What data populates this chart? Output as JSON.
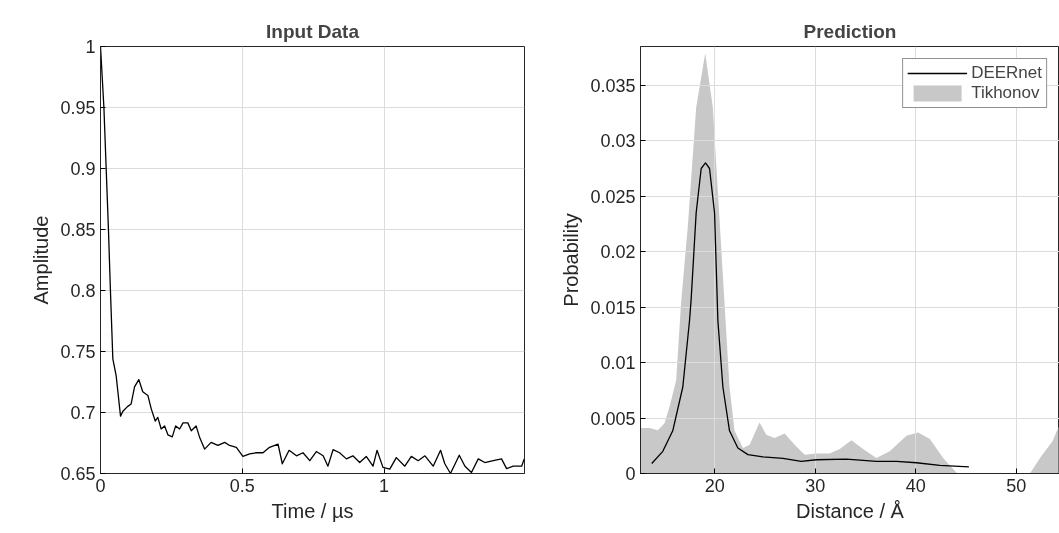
{
  "chart_data": [
    {
      "type": "line",
      "title": "Input Data",
      "xlabel": "Time / µs",
      "ylabel": "Amplitude",
      "xlim": [
        0,
        1.495
      ],
      "ylim": [
        0.65,
        1
      ],
      "xticks": [
        0,
        0.5,
        1
      ],
      "yticks": [
        0.65,
        0.7,
        0.75,
        0.8,
        0.85,
        0.9,
        0.95,
        1
      ],
      "grid": true,
      "legend": false,
      "series": [
        {
          "color": "#000000",
          "x": [
            0,
            0.012,
            0.02,
            0.028,
            0.035,
            0.0435,
            0.055,
            0.0706,
            0.079,
            0.096,
            0.108,
            0.12,
            0.135,
            0.149,
            0.167,
            0.179,
            0.193,
            0.202,
            0.214,
            0.226,
            0.238,
            0.253,
            0.265,
            0.279,
            0.291,
            0.308,
            0.32,
            0.337,
            0.349,
            0.367,
            0.39,
            0.414,
            0.438,
            0.455,
            0.479,
            0.502,
            0.526,
            0.549,
            0.573,
            0.596,
            0.626,
            0.641,
            0.665,
            0.691,
            0.714,
            0.738,
            0.761,
            0.785,
            0.802,
            0.82,
            0.843,
            0.867,
            0.89,
            0.914,
            0.937,
            0.961,
            0.975,
            0.996,
            1.02,
            1.043,
            1.073,
            1.096,
            1.12,
            1.144,
            1.173,
            1.199,
            1.214,
            1.234,
            1.265,
            1.285,
            1.308,
            1.332,
            1.355,
            1.385,
            1.414,
            1.432,
            1.455,
            1.485,
            1.494
          ],
          "values": [
            1.0,
            0.95,
            0.9,
            0.85,
            0.8,
            0.744,
            0.7305,
            0.697,
            0.701,
            0.705,
            0.707,
            0.721,
            0.727,
            0.717,
            0.714,
            0.703,
            0.693,
            0.696,
            0.6865,
            0.689,
            0.6816,
            0.68,
            0.689,
            0.6865,
            0.6915,
            0.6915,
            0.685,
            0.689,
            0.68,
            0.67,
            0.6755,
            0.673,
            0.6755,
            0.673,
            0.6715,
            0.664,
            0.666,
            0.667,
            0.667,
            0.6715,
            0.674,
            0.658,
            0.669,
            0.6645,
            0.667,
            0.6605,
            0.668,
            0.6645,
            0.656,
            0.6695,
            0.667,
            0.662,
            0.6645,
            0.659,
            0.664,
            0.656,
            0.669,
            0.655,
            0.6536,
            0.663,
            0.656,
            0.664,
            0.6605,
            0.6645,
            0.656,
            0.669,
            0.658,
            0.65,
            0.665,
            0.656,
            0.6508,
            0.662,
            0.659,
            0.6605,
            0.662,
            0.654,
            0.656,
            0.656,
            0.662
          ]
        }
      ]
    },
    {
      "type": "line",
      "title": "Prediction",
      "xlabel": "Distance / Å",
      "ylabel": "Probability",
      "xlim": [
        12.6,
        54.3
      ],
      "ylim": [
        0,
        0.0385
      ],
      "xticks": [
        20,
        30,
        40,
        50
      ],
      "yticks": [
        0,
        0.005,
        0.01,
        0.015,
        0.02,
        0.025,
        0.03,
        0.035
      ],
      "grid": true,
      "legend": "top right",
      "series": [
        {
          "name": "DEERnet",
          "type": "line",
          "color": "#000000",
          "x": [
            13.72,
            14.82,
            15.81,
            16.81,
            17.48,
            17.64,
            18.14,
            18.64,
            19.07,
            19.47,
            19.97,
            20.3,
            20.8,
            21.46,
            22.29,
            23.29,
            24.78,
            26.78,
            28.6,
            30.1,
            33.09,
            36.08,
            38.07,
            40.07,
            42.39,
            45.28
          ],
          "values": [
            0.0009,
            0.002,
            0.00385,
            0.0078,
            0.0138,
            0.0157,
            0.0235,
            0.0275,
            0.028,
            0.0275,
            0.0235,
            0.0138,
            0.0078,
            0.00385,
            0.0023,
            0.0017,
            0.0015,
            0.00136,
            0.0011,
            0.00124,
            0.0013,
            0.0011,
            0.0011,
            0.00097,
            0.00073,
            0.0006
          ]
        },
        {
          "name": "Tikhonov",
          "type": "area",
          "color": "#c8c8c8",
          "x": [
            12.6,
            13.49,
            14.32,
            14.98,
            15.48,
            16.15,
            16.64,
            17.31,
            18.14,
            19.04,
            19.8,
            20.3,
            20.96,
            21.46,
            21.96,
            22.79,
            23.46,
            24.45,
            25.12,
            25.95,
            26.94,
            27.94,
            28.94,
            30.1,
            31.43,
            32.43,
            33.59,
            34.75,
            36.08,
            37.41,
            39.07,
            40.23,
            41.4,
            42.72,
            44.05,
            44.72,
            51.36,
            52.36,
            53.6,
            54.2
          ],
          "values": [
            0.0041,
            0.0041,
            0.0039,
            0.0045,
            0.006,
            0.0084,
            0.0154,
            0.0223,
            0.033,
            0.0379,
            0.033,
            0.0254,
            0.0154,
            0.0078,
            0.00385,
            0.0023,
            0.0026,
            0.0046,
            0.0035,
            0.0032,
            0.0036,
            0.0026,
            0.0017,
            0.0018,
            0.0018,
            0.0022,
            0.003,
            0.0022,
            0.0014,
            0.002,
            0.0034,
            0.0037,
            0.0031,
            0.0014,
            6e-05,
            0,
            0,
            0.0014,
            0.0029,
            0.0042
          ]
        }
      ]
    }
  ]
}
